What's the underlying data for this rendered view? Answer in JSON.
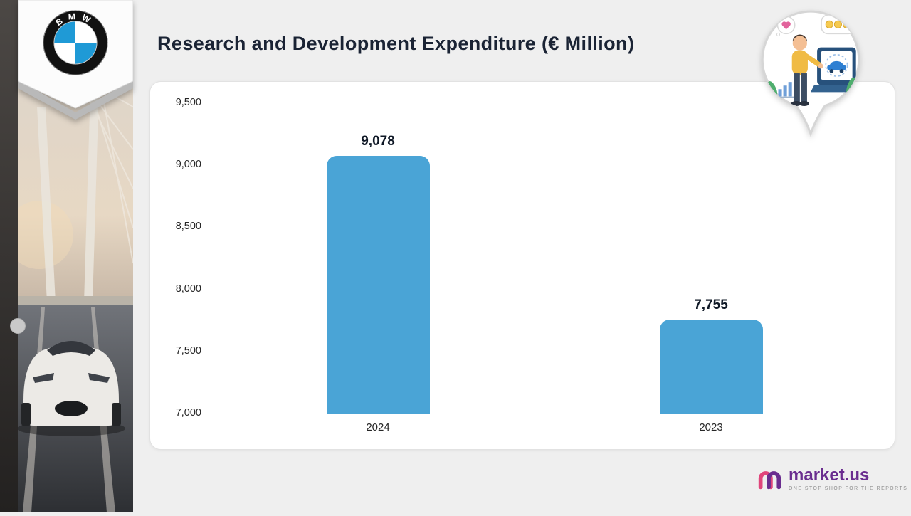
{
  "page": {
    "background": "#efefef"
  },
  "header": {
    "title": "Research and Development Expenditure (€ Million)"
  },
  "chart_data": {
    "type": "bar",
    "title": "Research and Development Expenditure (€ Million)",
    "categories": [
      "2024",
      "2023"
    ],
    "values": [
      9078,
      7755
    ],
    "value_labels": [
      "9,078",
      "7,755"
    ],
    "ylim": [
      7000,
      9500
    ],
    "yticks": [
      9500,
      9000,
      8500,
      8000,
      7500,
      7000
    ],
    "ytick_labels": [
      "9,500",
      "9,000",
      "8,500",
      "8,000",
      "7,500",
      "7,000"
    ],
    "grid": false,
    "legend": false,
    "bar_color": "#4aa4d6",
    "xlabel": "",
    "ylabel": ""
  },
  "bmw_logo": {
    "letters": "BMW",
    "blue": "#1f9ad6"
  },
  "pin_illustration": {
    "icons": [
      "heart-icon",
      "coins-icon",
      "car-icon",
      "plant-icon",
      "laptop-icon",
      "person-icon",
      "mini-bar-chart-icon"
    ]
  },
  "branding": {
    "name": "market.us",
    "tagline": "ONE STOP SHOP FOR THE REPORTS",
    "primary_color": "#6a2d8f",
    "accent_color": "#e0457b"
  }
}
